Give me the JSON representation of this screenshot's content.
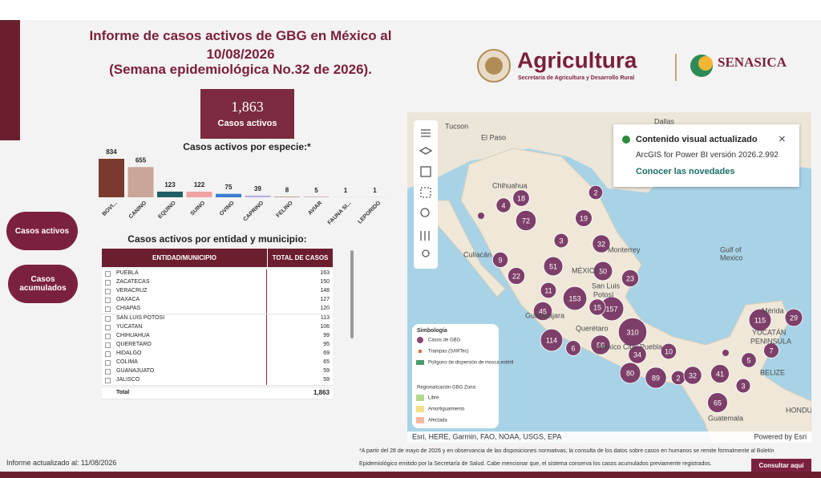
{
  "header": {
    "title_lines": [
      "Informe de casos activos de GBG en México al",
      "10/08/2026",
      "(Semana epidemiológica No.32 de 2026)."
    ],
    "brand": "Agricultura",
    "brand_subtitle": "Secretaría de Agricultura y Desarrollo Rural",
    "agency": "SENASICA"
  },
  "kpi": {
    "value": "1,863",
    "label": "Casos activos"
  },
  "buttons": [
    "Casos activos",
    "Casos acumulados"
  ],
  "species_chart": {
    "title": "Casos activos por especie:*",
    "categories": [
      "BOVI...",
      "CANINO",
      "EQUINO",
      "SUINO",
      "OVINO",
      "CAPRINO",
      "FELINO",
      "AVIAR",
      "FAUNA SI...",
      "LEPORIDO"
    ],
    "values": [
      834,
      655,
      123,
      122,
      75,
      39,
      8,
      5,
      1,
      1
    ],
    "colors": [
      "#7a3b2e",
      "#c9a59a",
      "#1f5e63",
      "#f0a3a3",
      "#3a7bd5",
      "#b9b2e0",
      "#7a3b2e",
      "#7a3b2e",
      "#7a3b2e",
      "#7a3b2e"
    ]
  },
  "table": {
    "title": "Casos activos por entidad y municipio:",
    "headers": [
      "ENTIDAD/MUNICIPIO",
      "TOTAL DE CASOS"
    ],
    "rows": [
      [
        "PUEBLA",
        163
      ],
      [
        "ZACATECAS",
        150
      ],
      [
        "VERACRUZ",
        148
      ],
      [
        "OAXACA",
        127
      ],
      [
        "CHIAPAS",
        120
      ],
      [
        "SAN LUIS POTOSI",
        113
      ],
      [
        "YUCATAN",
        106
      ],
      [
        "CHIHUAHUA",
        99
      ],
      [
        "QUERETARO",
        95
      ],
      [
        "HIDALGO",
        69
      ],
      [
        "COLIMA",
        65
      ],
      [
        "GUANAJUATO",
        59
      ],
      [
        "JALISCO",
        59
      ]
    ],
    "total": [
      "Total",
      "1,863"
    ]
  },
  "map": {
    "bubbles": [
      18,
      4,
      72,
      2,
      19,
      3,
      32,
      9,
      51,
      50,
      22,
      23,
      11,
      153,
      157,
      15,
      45,
      310,
      114,
      6,
      58,
      34,
      10,
      115,
      29,
      7,
      5,
      41,
      80,
      89,
      2,
      32,
      3,
      65
    ],
    "places": [
      "Tucson",
      "El Paso",
      "Chihuahua",
      "Dallas",
      "Culiacán",
      "MÉXICO",
      "Monterrey",
      "San Luis",
      "Potosí",
      "Guadalajara",
      "Querétaro",
      "Mexico City",
      "Puebla",
      "Mérida",
      "YUCATÁN",
      "PENINSULA",
      "BELIZE",
      "Guatemala",
      "HONDU",
      "Gulf of",
      "Mexico"
    ],
    "legend": {
      "title": "Simbología",
      "items": [
        "Casos de GBG",
        "Trampas (SARTec)",
        "Polígono de dispersión de mosca estéril"
      ],
      "zone_title": "Regionalización GBG Zona:",
      "zones": [
        "Libre",
        "Amortiguamiento",
        "Afectada"
      ]
    },
    "attribution": "Esri, HERE, Garmin, FAO, NOAA, USGS, EPA",
    "powered": "Powered by Esri"
  },
  "notification": {
    "title": "Contenido visual actualizado",
    "version": "ArcGIS for Power BI versión 2026.2.992",
    "link": "Conocer las novedades"
  },
  "footer": {
    "updated": "Informe actualizado al: 11/08/2026",
    "note_lines": [
      "*A partir del 28 de mayo de 2026 y en observancia de las disposiciones normativas, la consulta de los datos sobre casos en humanos se remite formalmente al Boletín",
      "Epidemiológico emitido por la Secretaría de Salud. Cabe mencionar que, el sistema conserva los casos acumulados previamente registrados."
    ],
    "button": "Consultar aquí"
  }
}
